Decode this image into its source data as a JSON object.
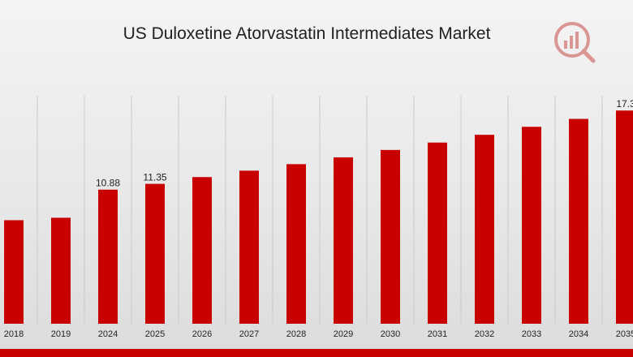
{
  "chart_data": {
    "type": "bar",
    "title": "US Duloxetine Atorvastatin Intermediates Market",
    "xlabel": "",
    "ylabel": "",
    "categories": [
      "2018",
      "2019",
      "2024",
      "2025",
      "2026",
      "2027",
      "2028",
      "2029",
      "2030",
      "2031",
      "2032",
      "2033",
      "2034",
      "2035"
    ],
    "values": [
      8.4,
      8.6,
      10.88,
      11.35,
      11.9,
      12.42,
      12.95,
      13.5,
      14.1,
      14.7,
      15.33,
      15.98,
      16.62,
      17.3
    ],
    "data_labels": [
      {
        "index": 2,
        "text": "10.88"
      },
      {
        "index": 3,
        "text": "11.35"
      },
      {
        "index": 13,
        "text": "17.3"
      }
    ],
    "ylim": [
      0,
      18.5
    ],
    "grid": "vertical",
    "bar_color": "#c90000"
  },
  "colors": {
    "accent": "#c90000",
    "logo": "#c94a4a"
  },
  "logo_icon": "market-research-logo-icon"
}
